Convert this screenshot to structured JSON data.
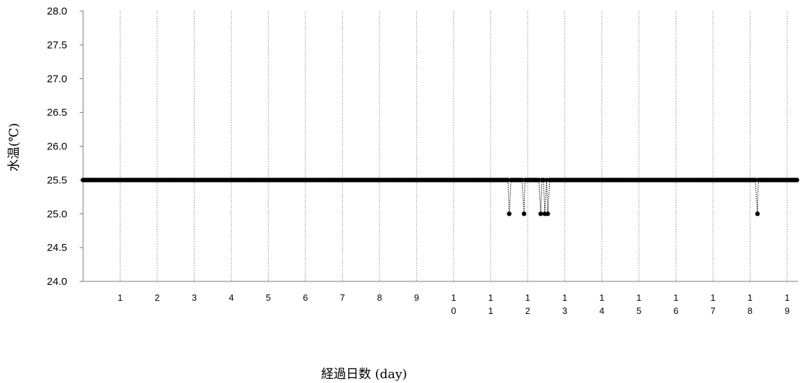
{
  "chart_data": {
    "type": "line",
    "xlabel": "経過日数 (day)",
    "ylabel": "水温(℃)",
    "ylim": [
      24.0,
      28.0
    ],
    "xlim": [
      0,
      19.3
    ],
    "y_ticks": [
      "24.0",
      "24.5",
      "25.0",
      "25.5",
      "26.0",
      "26.5",
      "27.0",
      "27.5",
      "28.0"
    ],
    "x_ticks": [
      {
        "value": 1,
        "lines": [
          "1"
        ]
      },
      {
        "value": 2,
        "lines": [
          "2"
        ]
      },
      {
        "value": 3,
        "lines": [
          "3"
        ]
      },
      {
        "value": 4,
        "lines": [
          "4"
        ]
      },
      {
        "value": 5,
        "lines": [
          "5"
        ]
      },
      {
        "value": 6,
        "lines": [
          "6"
        ]
      },
      {
        "value": 7,
        "lines": [
          "7"
        ]
      },
      {
        "value": 8,
        "lines": [
          "8"
        ]
      },
      {
        "value": 9,
        "lines": [
          "9"
        ]
      },
      {
        "value": 10,
        "lines": [
          "1",
          "0"
        ]
      },
      {
        "value": 11,
        "lines": [
          "1",
          "1"
        ]
      },
      {
        "value": 12,
        "lines": [
          "1",
          "2"
        ]
      },
      {
        "value": 13,
        "lines": [
          "1",
          "3"
        ]
      },
      {
        "value": 14,
        "lines": [
          "1",
          "4"
        ]
      },
      {
        "value": 15,
        "lines": [
          "1",
          "5"
        ]
      },
      {
        "value": 16,
        "lines": [
          "1",
          "6"
        ]
      },
      {
        "value": 17,
        "lines": [
          "1",
          "7"
        ]
      },
      {
        "value": 18,
        "lines": [
          "1",
          "8"
        ]
      },
      {
        "value": 19,
        "lines": [
          "1",
          "9"
        ]
      }
    ],
    "grid": "vertical dotted",
    "legend": "none",
    "series": [
      {
        "baseline_value": 25.5,
        "sample_interval_day": 0.0417,
        "x_range": [
          0,
          19.3
        ],
        "dips": [
          {
            "x": 11.5,
            "y": 25.0
          },
          {
            "x": 11.9,
            "y": 25.0
          },
          {
            "x": 12.35,
            "y": 25.0
          },
          {
            "x": 12.46,
            "y": 25.0
          },
          {
            "x": 12.54,
            "y": 25.0
          },
          {
            "x": 18.2,
            "y": 25.0
          }
        ],
        "color": "#000000"
      }
    ]
  }
}
